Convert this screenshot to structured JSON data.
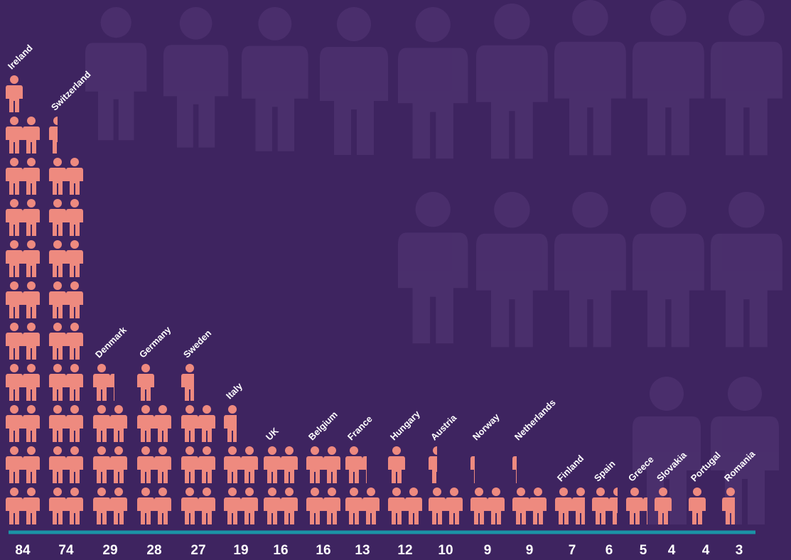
{
  "chart_data": {
    "type": "pictogram",
    "categories": [
      "Ireland",
      "Switzerland",
      "Denmark",
      "Germany",
      "Sweden",
      "Italy",
      "UK",
      "Belgium",
      "France",
      "Hungary",
      "Austria",
      "Norway",
      "Netherlands",
      "Finland",
      "Spain",
      "Greece",
      "Slovakia",
      "Portugal",
      "Romania"
    ],
    "values": [
      84,
      74,
      29,
      28,
      27,
      19,
      16,
      16,
      13,
      12,
      10,
      9,
      9,
      7,
      6,
      5,
      4,
      4,
      3
    ],
    "icon_value": 4,
    "icons_per_row": 2,
    "color": "#ee8a7f",
    "axis_color": "#1b93a6",
    "background": "#3e2460"
  }
}
